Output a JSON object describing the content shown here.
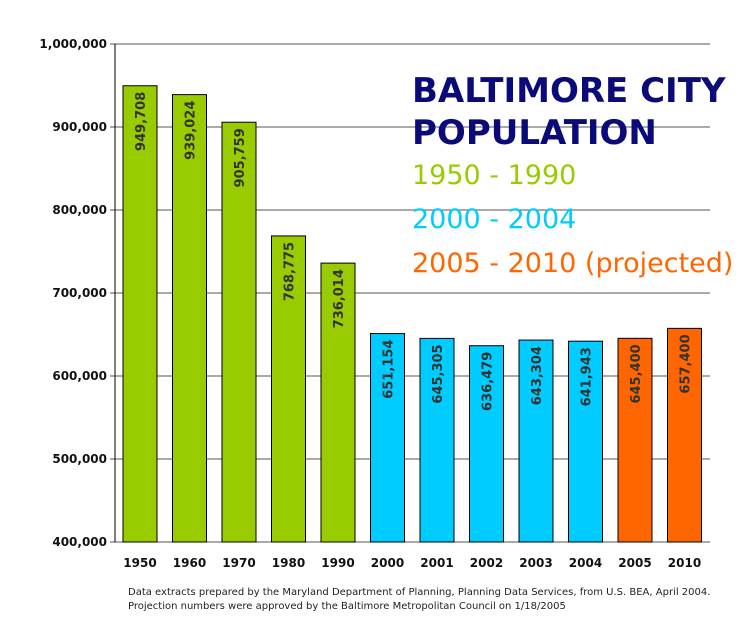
{
  "chart_data": {
    "type": "bar",
    "title": "BALTIMORE CITY POPULATION",
    "xlabel": "",
    "ylabel": "",
    "categories": [
      "1950",
      "1960",
      "1970",
      "1980",
      "1990",
      "2000",
      "2001",
      "2002",
      "2003",
      "2004",
      "2005",
      "2010"
    ],
    "values": [
      949708,
      939024,
      905759,
      768775,
      736014,
      651154,
      645305,
      636479,
      643304,
      641943,
      645400,
      657400
    ],
    "value_labels": [
      "949,708",
      "939,024",
      "905,759",
      "768,775",
      "736,014",
      "651,154",
      "645,305",
      "636,479",
      "643,304",
      "641,943",
      "645,400",
      "657,400"
    ],
    "bar_groups": [
      "1950-1990",
      "1950-1990",
      "1950-1990",
      "1950-1990",
      "1950-1990",
      "2000-2004",
      "2000-2004",
      "2000-2004",
      "2000-2004",
      "2000-2004",
      "2005-2010",
      "2005-2010"
    ],
    "ylim": [
      400000,
      1000000
    ],
    "yticks": [
      400000,
      500000,
      600000,
      700000,
      800000,
      900000,
      1000000
    ],
    "ytick_labels": [
      "400,000",
      "500,000",
      "600,000",
      "700,000",
      "800,000",
      "900,000",
      "1,000,000"
    ],
    "grid": true,
    "legend_placement": "top-right",
    "legend": [
      {
        "label": "1950 - 1990",
        "color": "#99cc00"
      },
      {
        "label": "2000 - 2004",
        "color": "#00ccff"
      },
      {
        "label": "2005 - 2010 (projected)",
        "color": "#ff6600"
      }
    ]
  },
  "title_lines": [
    "BALTIMORE CITY",
    "POPULATION"
  ],
  "colors": {
    "title": "#0a0a78",
    "group_1950_1990": "#99cc00",
    "group_2000_2004": "#00ccff",
    "group_2005_2010": "#ff6600",
    "grid": "#555555",
    "axis": "#000000"
  },
  "footnote": {
    "line1": "Data extracts prepared by the Maryland Department of Planning, Planning Data Services, from U.S. BEA, April 2004.",
    "line2": "Projection numbers were approved by the Baltimore Metropolitan Council on 1/18/2005"
  }
}
